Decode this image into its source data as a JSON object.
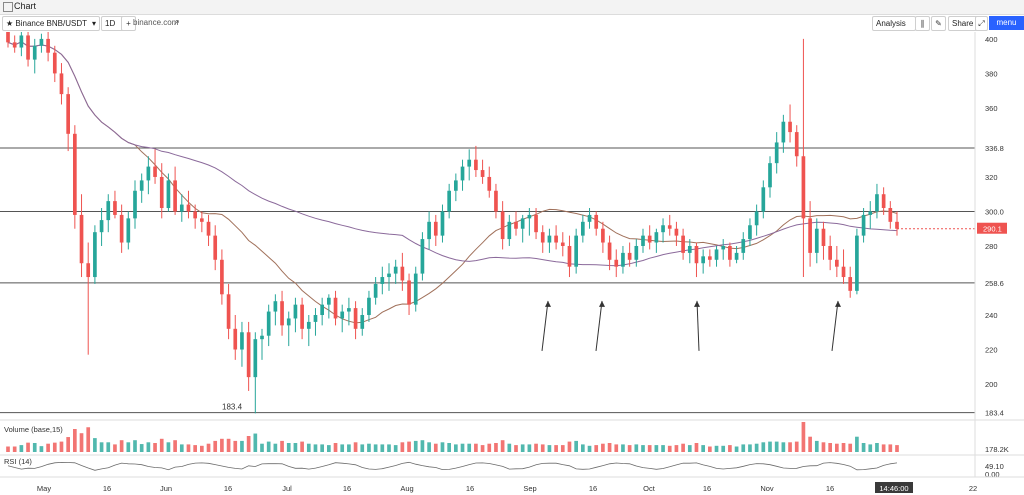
{
  "window": {
    "title": "Chart"
  },
  "toolbar": {
    "symbol": "Binance BNB/USDT",
    "interval": "1D",
    "add_symbol": "+",
    "source": "binance.com",
    "analysis": "Analysis",
    "share": "Share",
    "menu": "menu"
  },
  "colors": {
    "up": "#26a69a",
    "down": "#ef5350",
    "ma_short": "#a0705a",
    "ma_long": "#8b6a9b",
    "level_line": "#555555",
    "price_label": "#ef5350"
  },
  "chart_data": {
    "type": "candlestick",
    "symbol": "BNB/USDT",
    "interval": "1D",
    "ylim": [
      178,
      404
    ],
    "y_ticks": [
      400,
      380,
      360,
      336.8,
      320,
      300.0,
      280,
      258.6,
      240,
      220,
      200,
      183.4
    ],
    "x_ticks": [
      "May",
      "16",
      "Jun",
      "16",
      "Jul",
      "16",
      "Aug",
      "16",
      "Sep",
      "16",
      "Oct",
      "16",
      "Nov",
      "16",
      "22"
    ],
    "horizontal_levels": [
      336.8,
      300.0,
      258.6,
      183.4
    ],
    "low_label": "183.4",
    "current_price": "290.1",
    "time_label": "14:46:00",
    "annotation_arrows": 4,
    "candles": [
      [
        404,
        405,
        395,
        398
      ],
      [
        398,
        402,
        392,
        395
      ],
      [
        395,
        404,
        390,
        402
      ],
      [
        402,
        405,
        384,
        388
      ],
      [
        388,
        400,
        380,
        396
      ],
      [
        396,
        403,
        392,
        400
      ],
      [
        400,
        405,
        387,
        392
      ],
      [
        392,
        396,
        375,
        380
      ],
      [
        380,
        386,
        362,
        368
      ],
      [
        368,
        372,
        335,
        345
      ],
      [
        345,
        350,
        290,
        298
      ],
      [
        298,
        310,
        262,
        270
      ],
      [
        270,
        282,
        217,
        262
      ],
      [
        262,
        292,
        258,
        288
      ],
      [
        288,
        302,
        280,
        295
      ],
      [
        295,
        310,
        288,
        306
      ],
      [
        306,
        312,
        296,
        298
      ],
      [
        298,
        304,
        276,
        282
      ],
      [
        282,
        300,
        278,
        296
      ],
      [
        296,
        318,
        290,
        312
      ],
      [
        312,
        322,
        305,
        318
      ],
      [
        318,
        332,
        310,
        326
      ],
      [
        326,
        336,
        316,
        320
      ],
      [
        320,
        328,
        296,
        302
      ],
      [
        302,
        322,
        300,
        318
      ],
      [
        318,
        326,
        298,
        300
      ],
      [
        300,
        310,
        294,
        304
      ],
      [
        304,
        312,
        296,
        300
      ],
      [
        300,
        304,
        290,
        296
      ],
      [
        296,
        300,
        288,
        294
      ],
      [
        294,
        298,
        280,
        286
      ],
      [
        286,
        292,
        266,
        272
      ],
      [
        272,
        278,
        246,
        252
      ],
      [
        252,
        258,
        226,
        232
      ],
      [
        232,
        240,
        214,
        220
      ],
      [
        220,
        236,
        210,
        230
      ],
      [
        230,
        236,
        196,
        204
      ],
      [
        204,
        230,
        183,
        226
      ],
      [
        226,
        232,
        214,
        228
      ],
      [
        228,
        246,
        222,
        242
      ],
      [
        242,
        252,
        234,
        248
      ],
      [
        248,
        254,
        228,
        234
      ],
      [
        234,
        242,
        222,
        238
      ],
      [
        238,
        250,
        230,
        246
      ],
      [
        246,
        250,
        226,
        232
      ],
      [
        232,
        240,
        222,
        236
      ],
      [
        236,
        244,
        228,
        240
      ],
      [
        240,
        250,
        234,
        246
      ],
      [
        246,
        252,
        238,
        250
      ],
      [
        250,
        254,
        234,
        238
      ],
      [
        238,
        246,
        230,
        242
      ],
      [
        242,
        250,
        234,
        244
      ],
      [
        244,
        248,
        226,
        232
      ],
      [
        232,
        244,
        228,
        240
      ],
      [
        240,
        254,
        236,
        250
      ],
      [
        250,
        262,
        246,
        258
      ],
      [
        258,
        268,
        252,
        262
      ],
      [
        262,
        270,
        254,
        264
      ],
      [
        264,
        272,
        258,
        268
      ],
      [
        268,
        276,
        254,
        260
      ],
      [
        260,
        264,
        240,
        246
      ],
      [
        246,
        268,
        242,
        264
      ],
      [
        264,
        288,
        260,
        284
      ],
      [
        284,
        300,
        278,
        294
      ],
      [
        294,
        298,
        280,
        286
      ],
      [
        286,
        304,
        282,
        300
      ],
      [
        300,
        316,
        296,
        312
      ],
      [
        312,
        322,
        306,
        318
      ],
      [
        318,
        330,
        312,
        326
      ],
      [
        326,
        336,
        318,
        330
      ],
      [
        330,
        338,
        320,
        324
      ],
      [
        324,
        330,
        316,
        320
      ],
      [
        320,
        326,
        308,
        312
      ],
      [
        312,
        316,
        296,
        300
      ],
      [
        300,
        306,
        278,
        284
      ],
      [
        284,
        298,
        280,
        294
      ],
      [
        294,
        300,
        286,
        290
      ],
      [
        290,
        298,
        282,
        296
      ],
      [
        296,
        302,
        286,
        298
      ],
      [
        298,
        302,
        284,
        288
      ],
      [
        288,
        292,
        276,
        282
      ],
      [
        282,
        290,
        276,
        286
      ],
      [
        286,
        292,
        278,
        282
      ],
      [
        282,
        288,
        274,
        280
      ],
      [
        280,
        286,
        262,
        268
      ],
      [
        268,
        290,
        264,
        286
      ],
      [
        286,
        298,
        282,
        294
      ],
      [
        294,
        302,
        290,
        298
      ],
      [
        298,
        300,
        286,
        290
      ],
      [
        290,
        294,
        276,
        282
      ],
      [
        282,
        286,
        266,
        272
      ],
      [
        272,
        278,
        262,
        268
      ],
      [
        268,
        280,
        264,
        276
      ],
      [
        276,
        282,
        268,
        272
      ],
      [
        272,
        284,
        268,
        280
      ],
      [
        280,
        290,
        276,
        286
      ],
      [
        286,
        292,
        278,
        282
      ],
      [
        282,
        290,
        276,
        288
      ],
      [
        288,
        296,
        282,
        292
      ],
      [
        292,
        298,
        286,
        290
      ],
      [
        290,
        294,
        280,
        286
      ],
      [
        286,
        290,
        272,
        276
      ],
      [
        276,
        284,
        270,
        280
      ],
      [
        280,
        282,
        262,
        270
      ],
      [
        270,
        278,
        264,
        274
      ],
      [
        274,
        278,
        268,
        272
      ],
      [
        272,
        280,
        268,
        278
      ],
      [
        278,
        284,
        272,
        280
      ],
      [
        280,
        282,
        268,
        272
      ],
      [
        272,
        280,
        270,
        276
      ],
      [
        276,
        288,
        272,
        284
      ],
      [
        284,
        296,
        280,
        292
      ],
      [
        292,
        304,
        286,
        300
      ],
      [
        300,
        318,
        296,
        314
      ],
      [
        314,
        332,
        308,
        328
      ],
      [
        328,
        346,
        322,
        340
      ],
      [
        340,
        356,
        334,
        352
      ],
      [
        352,
        362,
        340,
        346
      ],
      [
        346,
        350,
        326,
        332
      ],
      [
        332,
        400,
        262,
        296
      ],
      [
        296,
        306,
        268,
        276
      ],
      [
        276,
        296,
        270,
        290
      ],
      [
        290,
        294,
        272,
        280
      ],
      [
        280,
        286,
        266,
        272
      ],
      [
        272,
        280,
        262,
        268
      ],
      [
        268,
        278,
        258,
        262
      ],
      [
        262,
        268,
        250,
        254
      ],
      [
        254,
        290,
        252,
        286
      ],
      [
        286,
        302,
        282,
        298
      ],
      [
        298,
        306,
        290,
        300
      ],
      [
        300,
        316,
        296,
        310
      ],
      [
        310,
        314,
        298,
        302
      ],
      [
        302,
        306,
        290,
        294
      ],
      [
        294,
        300,
        286,
        290
      ]
    ]
  }
}
